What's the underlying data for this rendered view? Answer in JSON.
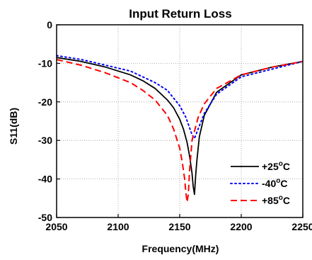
{
  "chart_data": {
    "type": "line",
    "title": "Input Return Loss",
    "xlabel": "Frequency(MHz)",
    "ylabel": "S11(dB)",
    "xlim": [
      2050,
      2250
    ],
    "ylim": [
      -50,
      0
    ],
    "xticks": [
      2050,
      2100,
      2150,
      2200,
      2250
    ],
    "yticks": [
      0,
      -10,
      -20,
      -30,
      -40,
      -50
    ],
    "grid": true,
    "legend_position": "bottom-right",
    "series": [
      {
        "name": "+25°C",
        "label_base": "+25",
        "label_sup": "o",
        "label_unit": "C",
        "color": "#000000",
        "style": "solid",
        "x": [
          2050,
          2070,
          2090,
          2110,
          2120,
          2130,
          2140,
          2145,
          2150,
          2153,
          2156,
          2158,
          2160,
          2161,
          2162,
          2163,
          2164,
          2166,
          2170,
          2180,
          2200,
          2225,
          2250
        ],
        "y": [
          -8.5,
          -9.5,
          -11,
          -13,
          -14.5,
          -16.5,
          -19.5,
          -21.5,
          -24.5,
          -27,
          -30.5,
          -34,
          -38.5,
          -42,
          -44,
          -39,
          -35,
          -29,
          -23.5,
          -17.5,
          -13,
          -11,
          -9.5
        ]
      },
      {
        "name": "-40°C",
        "label_base": "-40",
        "label_sup": "o",
        "label_unit": "C",
        "color": "#0000ff",
        "style": "dotted",
        "x": [
          2050,
          2070,
          2090,
          2110,
          2130,
          2140,
          2150,
          2155,
          2160,
          2162,
          2165,
          2170,
          2180,
          2200,
          2225,
          2250
        ],
        "y": [
          -8,
          -9,
          -10.5,
          -12,
          -15,
          -17,
          -21,
          -24,
          -28.5,
          -29.5,
          -27,
          -23,
          -18,
          -13.5,
          -11.5,
          -9.5
        ]
      },
      {
        "name": "+85°C",
        "label_base": "+85",
        "label_sup": "o",
        "label_unit": "C",
        "color": "#ff0000",
        "style": "dashed",
        "x": [
          2050,
          2070,
          2090,
          2110,
          2120,
          2130,
          2140,
          2145,
          2150,
          2152,
          2154,
          2155,
          2156,
          2157,
          2158,
          2160,
          2165,
          2170,
          2180,
          2200,
          2225,
          2250
        ],
        "y": [
          -9,
          -10.5,
          -12.5,
          -15,
          -17,
          -19.5,
          -23.5,
          -27,
          -32,
          -35.5,
          -40,
          -43.5,
          -46,
          -44,
          -38,
          -30,
          -24,
          -20.5,
          -16.5,
          -13,
          -11,
          -9.5
        ]
      }
    ]
  }
}
